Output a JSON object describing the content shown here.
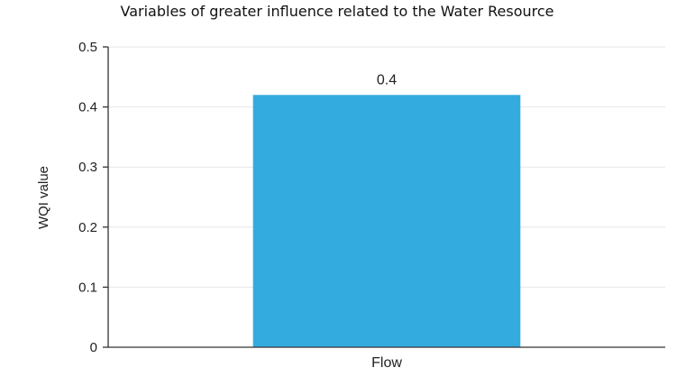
{
  "chart_data": {
    "type": "bar",
    "title": "Variables of greater influence related to the Water Resource",
    "xlabel": "",
    "ylabel": "WQI value",
    "categories": [
      "Flow"
    ],
    "values": [
      0.42
    ],
    "data_labels": [
      "0.4"
    ],
    "ylim": [
      0,
      0.5
    ],
    "yticks": [
      0,
      0.1,
      0.2,
      0.3,
      0.4,
      0.5
    ],
    "ytick_labels": [
      "0",
      "0.1",
      "0.2",
      "0.3",
      "0.4",
      "0.5"
    ],
    "grid": true,
    "bar_color": "#34ABDF"
  }
}
